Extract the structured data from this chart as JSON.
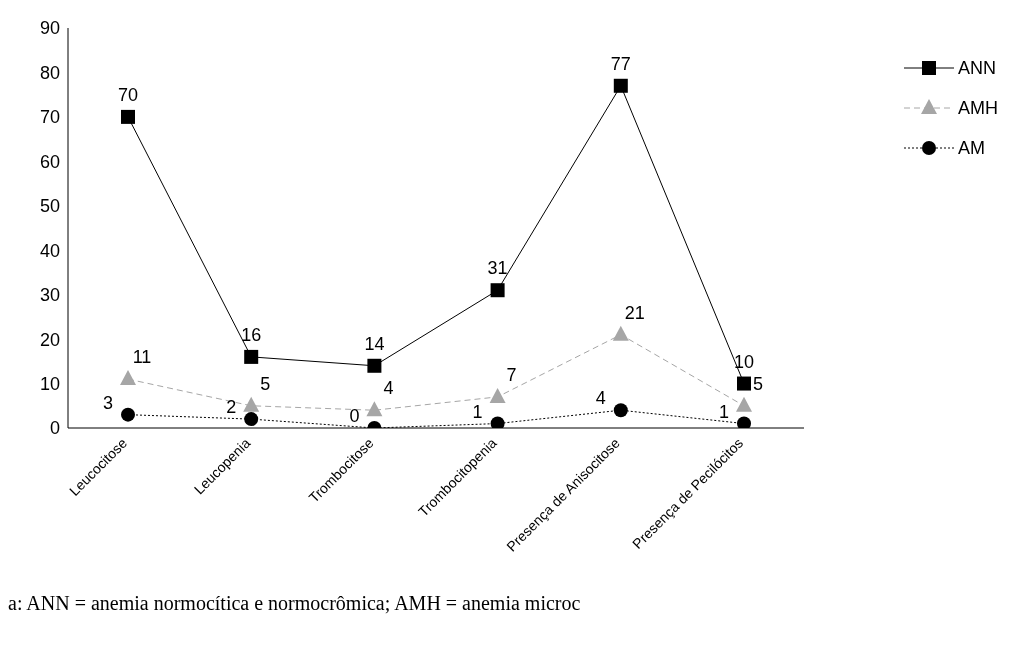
{
  "chart_data": {
    "type": "line",
    "categories": [
      "Leucocitose",
      "Leucopenia",
      "Trombocitose",
      "Trombocitopenia",
      "Presença de Anisocitose",
      "Presença de Pecilócitos"
    ],
    "series": [
      {
        "name": "ANN",
        "color": "#000000",
        "marker": "square",
        "line_style": "solid",
        "values": [
          70,
          16,
          14,
          31,
          77,
          10
        ]
      },
      {
        "name": "AMH",
        "color": "#a6a6a6",
        "marker": "triangle",
        "line_style": "dashed",
        "values": [
          11,
          5,
          4,
          7,
          21,
          5
        ]
      },
      {
        "name": "AM",
        "color": "#000000",
        "marker": "circle",
        "line_style": "dotted",
        "values": [
          3,
          2,
          0,
          1,
          4,
          1
        ]
      }
    ],
    "ylim": [
      0,
      90
    ],
    "yticks": [
      0,
      10,
      20,
      30,
      40,
      50,
      60,
      70,
      80,
      90
    ],
    "grid": false,
    "legend": "top right",
    "data_labels": true,
    "annotations": [
      "a: ANN = anemia normocítica e normocrômica; AMH = anemia microc"
    ]
  }
}
